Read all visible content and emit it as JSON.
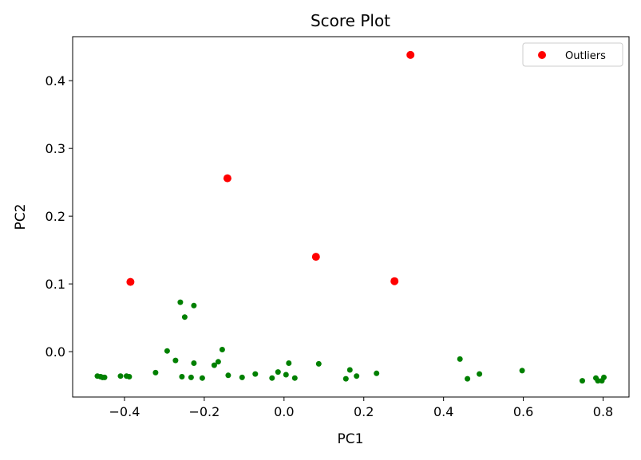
{
  "chart_data": {
    "type": "scatter",
    "title": "Score Plot",
    "xlabel": "PC1",
    "ylabel": "PC2",
    "xlim": [
      -0.53,
      0.865
    ],
    "ylim": [
      -0.067,
      0.465
    ],
    "xticks": [
      -0.4,
      -0.2,
      0.0,
      0.2,
      0.4,
      0.6,
      0.8
    ],
    "xtick_labels": [
      "−0.4",
      "−0.2",
      "0.0",
      "0.2",
      "0.4",
      "0.6",
      "0.8"
    ],
    "yticks": [
      0.0,
      0.1,
      0.2,
      0.3,
      0.4
    ],
    "ytick_labels": [
      "0.0",
      "0.1",
      "0.2",
      "0.3",
      "0.4"
    ],
    "grid": false,
    "legend_position": "top-right",
    "series": [
      {
        "color": "#008000",
        "points": [
          [
            -0.468,
            -0.036
          ],
          [
            -0.46,
            -0.037
          ],
          [
            -0.455,
            -0.038
          ],
          [
            -0.45,
            -0.038
          ],
          [
            -0.41,
            -0.036
          ],
          [
            -0.395,
            -0.036
          ],
          [
            -0.388,
            -0.037
          ],
          [
            -0.322,
            -0.031
          ],
          [
            -0.293,
            0.001
          ],
          [
            -0.272,
            -0.013
          ],
          [
            -0.26,
            0.073
          ],
          [
            -0.256,
            -0.037
          ],
          [
            -0.249,
            0.051
          ],
          [
            -0.233,
            -0.038
          ],
          [
            -0.226,
            0.068
          ],
          [
            -0.226,
            -0.017
          ],
          [
            -0.205,
            -0.039
          ],
          [
            -0.175,
            -0.02
          ],
          [
            -0.165,
            -0.015
          ],
          [
            -0.155,
            0.003
          ],
          [
            -0.14,
            -0.035
          ],
          [
            -0.105,
            -0.038
          ],
          [
            -0.072,
            -0.033
          ],
          [
            -0.03,
            -0.039
          ],
          [
            -0.015,
            -0.03
          ],
          [
            0.005,
            -0.034
          ],
          [
            0.012,
            -0.017
          ],
          [
            0.027,
            -0.039
          ],
          [
            0.087,
            -0.018
          ],
          [
            0.155,
            -0.04
          ],
          [
            0.165,
            -0.027
          ],
          [
            0.182,
            -0.036
          ],
          [
            0.232,
            -0.032
          ],
          [
            0.441,
            -0.011
          ],
          [
            0.46,
            -0.04
          ],
          [
            0.49,
            -0.033
          ],
          [
            0.597,
            -0.028
          ],
          [
            0.748,
            -0.043
          ],
          [
            0.782,
            -0.039
          ],
          [
            0.787,
            -0.043
          ],
          [
            0.797,
            -0.043
          ],
          [
            0.802,
            -0.038
          ]
        ]
      },
      {
        "name": "Outliers",
        "color": "#ff0000",
        "points": [
          [
            0.317,
            0.438
          ],
          [
            -0.142,
            0.256
          ],
          [
            0.08,
            0.14
          ],
          [
            -0.385,
            0.103
          ],
          [
            0.277,
            0.104
          ]
        ]
      }
    ]
  }
}
